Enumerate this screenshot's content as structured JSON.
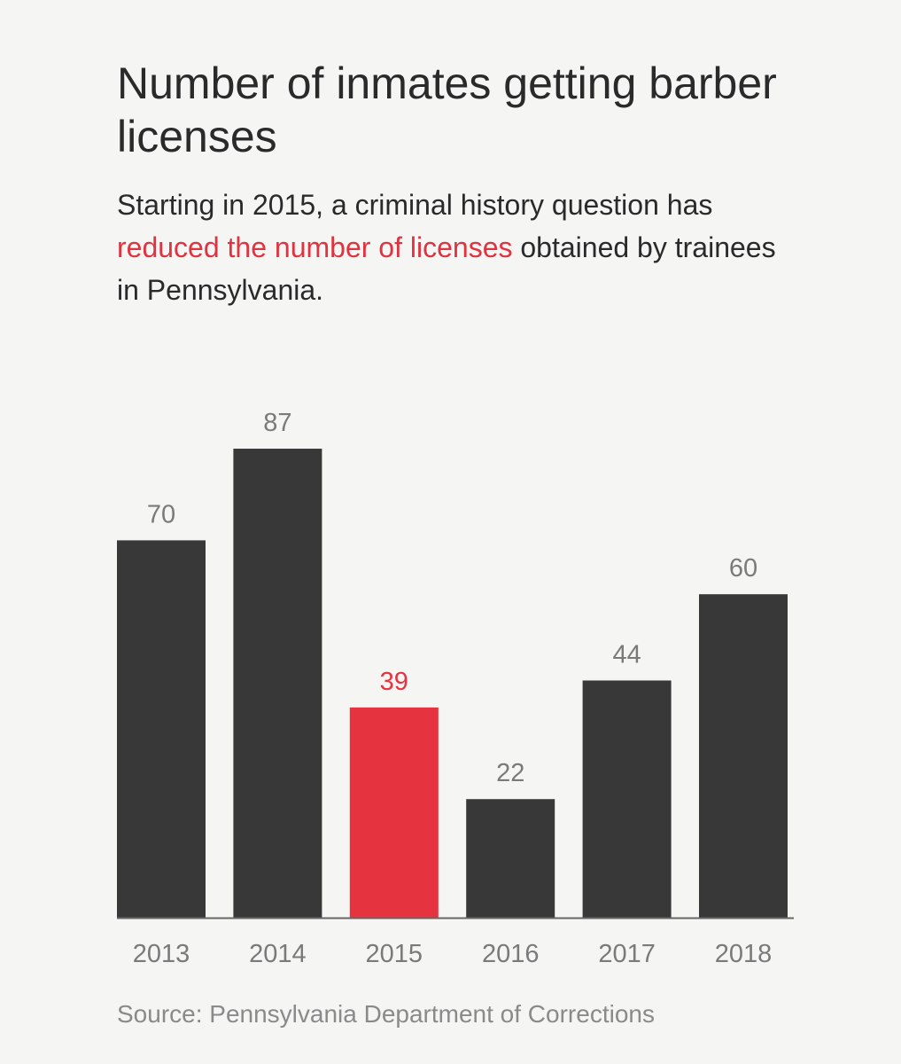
{
  "title": "Number of inmates getting barber licenses",
  "subtitle": {
    "before": "Starting in 2015, a criminal history question has ",
    "highlight": "reduced the number of licenses",
    "after": " obtained by trainees in Pennsylvania."
  },
  "source": "Source: Pennsylvania Department of Corrections",
  "colors": {
    "bar": "#383838",
    "highlight": "#e63340",
    "value_label": "#7a7a7a",
    "axis": "#666666"
  },
  "chart_data": {
    "type": "bar",
    "title": "Number of inmates getting barber licenses",
    "xlabel": "",
    "ylabel": "",
    "categories": [
      "2013",
      "2014",
      "2015",
      "2016",
      "2017",
      "2018"
    ],
    "values": [
      70,
      87,
      39,
      22,
      44,
      60
    ],
    "highlight_category": "2015",
    "ylim": [
      0,
      100
    ],
    "grid": false,
    "legend": "none"
  }
}
